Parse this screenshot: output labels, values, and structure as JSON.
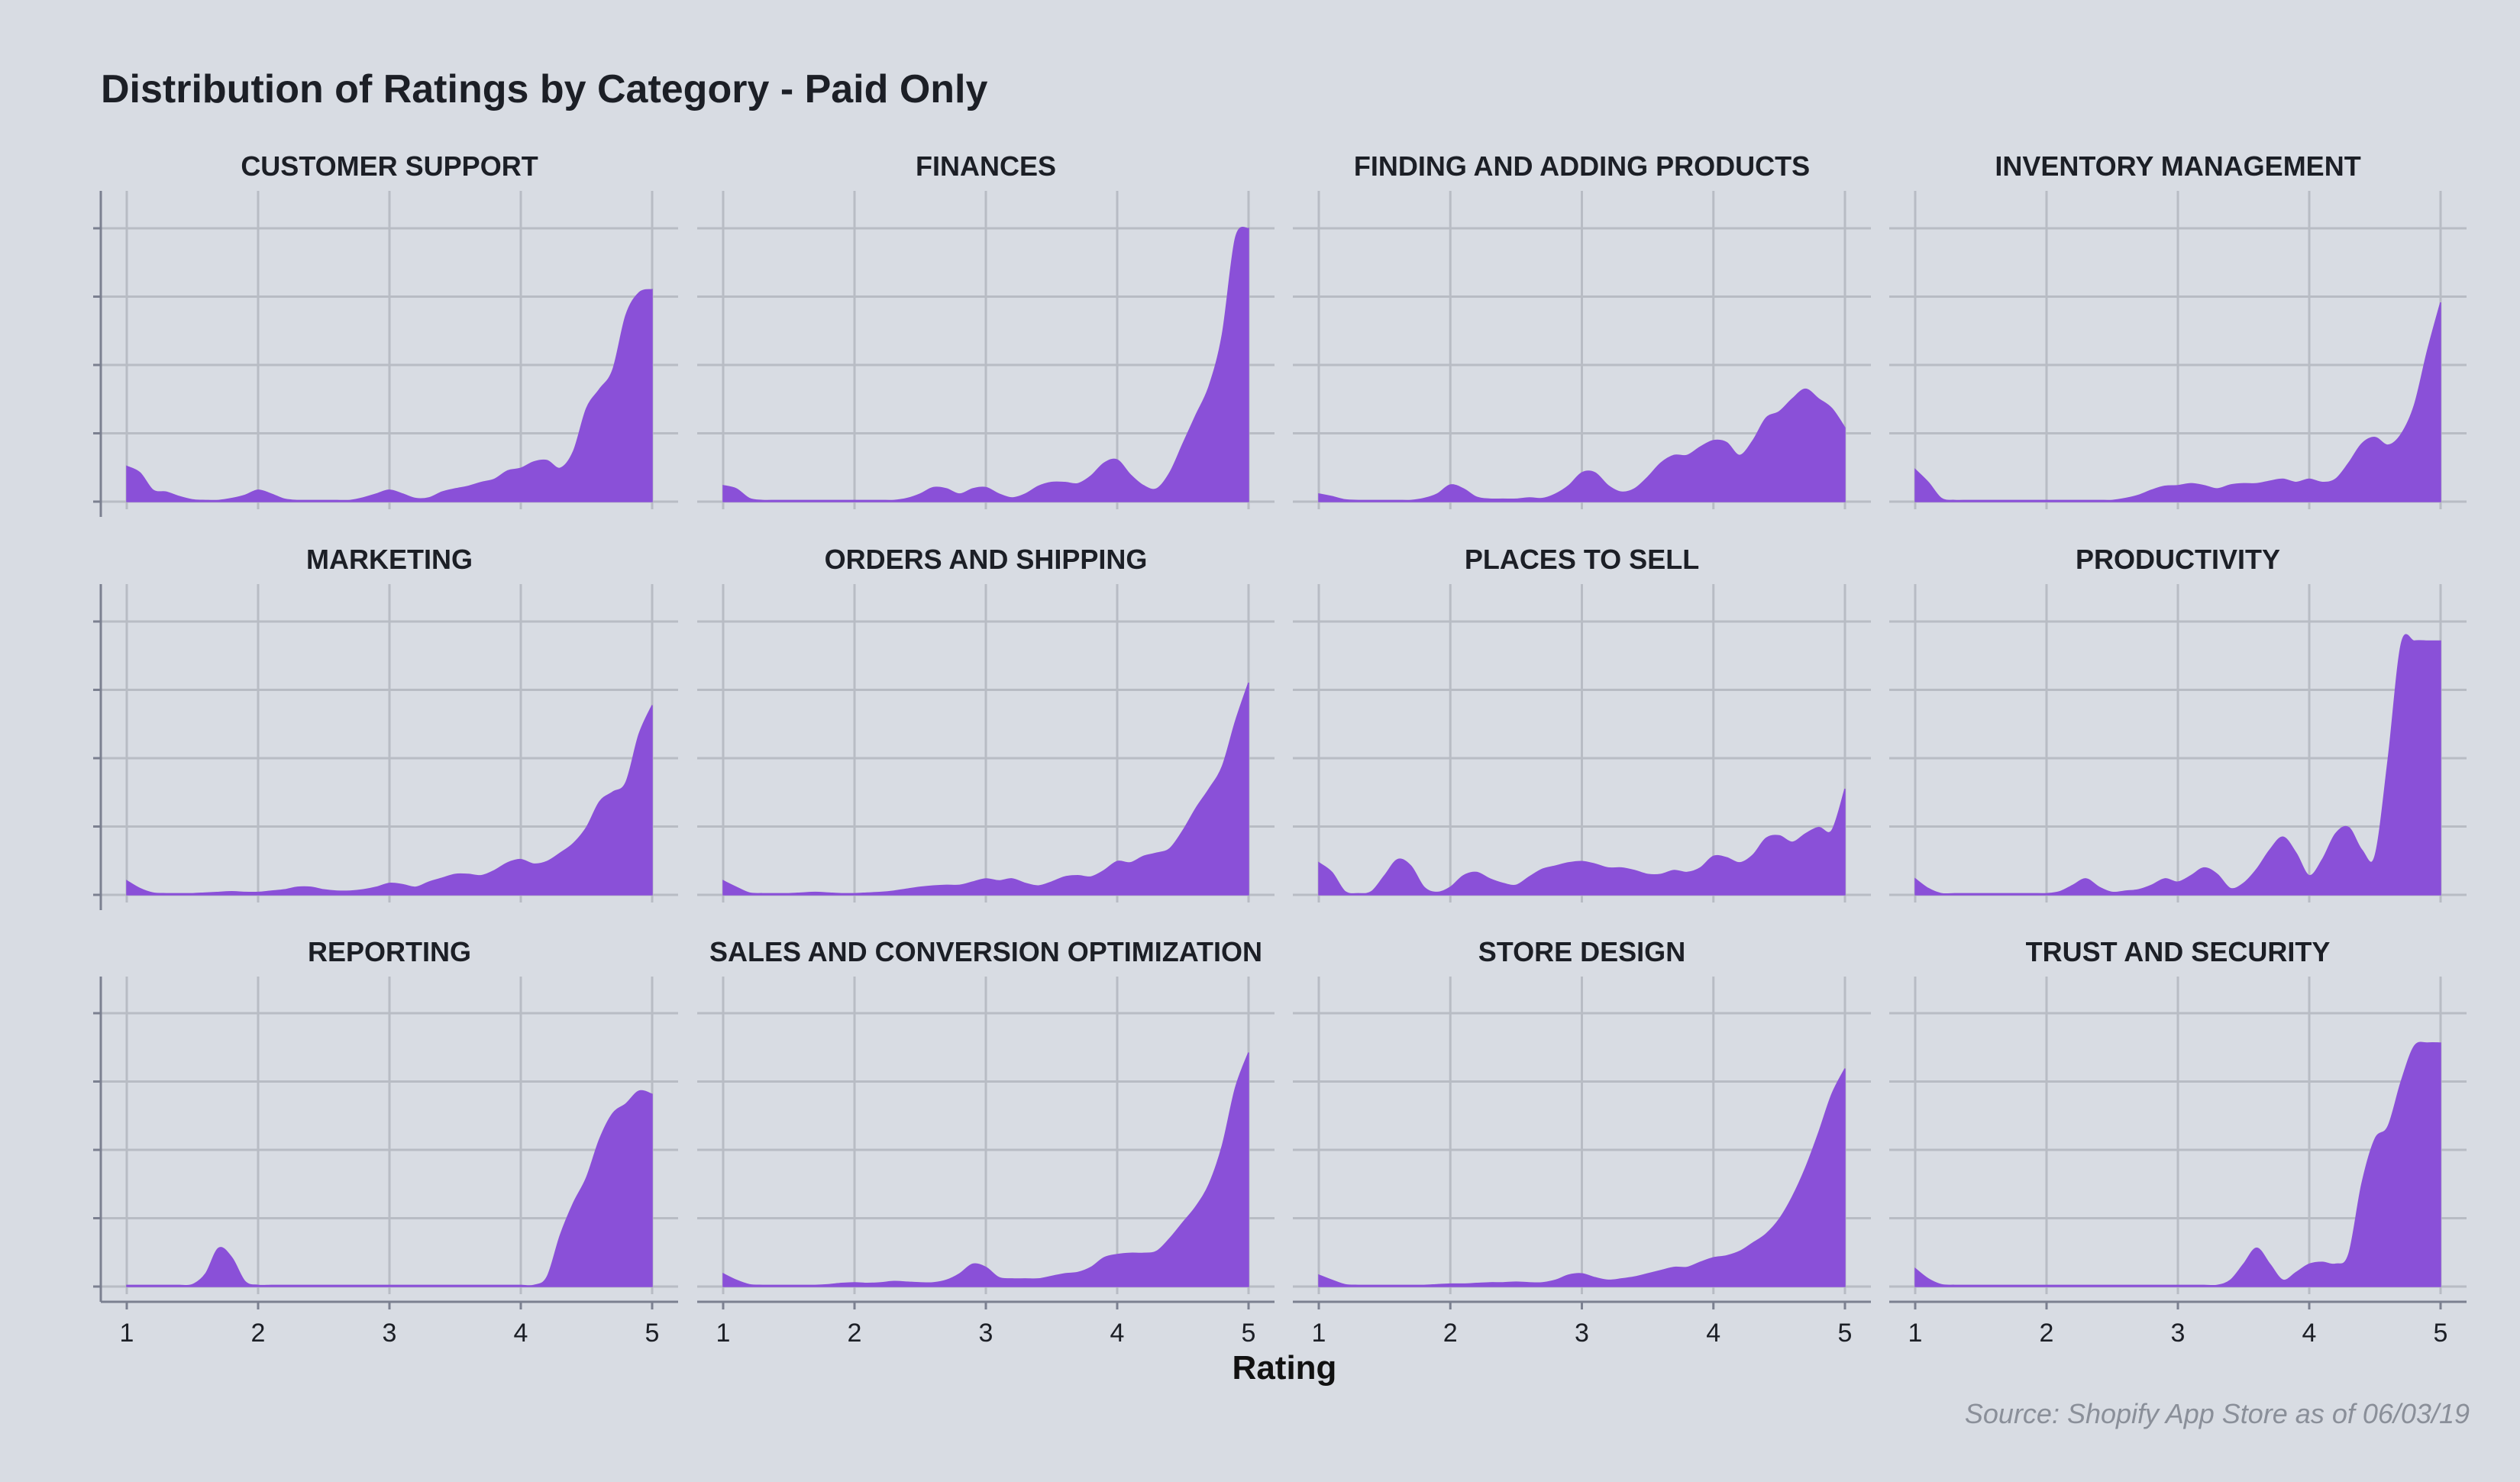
{
  "chart": {
    "title": "Distribution of Ratings by Category - Paid Only",
    "caption": "Source: Shopify App Store as of 06/03/19",
    "xlabel": "Rating"
  },
  "colors": {
    "background": "#d8dce3",
    "fill": "#8a50d8",
    "grid": "#b8bcc4",
    "axis": "#7b8090"
  },
  "chart_data": {
    "type": "area",
    "title": "Distribution of Ratings by Category - Paid Only",
    "xlabel": "Rating",
    "ylabel": "",
    "xlim": [
      1,
      5
    ],
    "xticks": [
      1,
      2,
      3,
      4,
      5
    ],
    "ylim": [
      0,
      4.3
    ],
    "grid": true,
    "legend": "none",
    "panels": [
      {
        "name": "CUSTOMER SUPPORT",
        "x": [
          1,
          1.1,
          1.2,
          1.3,
          1.4,
          1.5,
          1.6,
          1.7,
          1.8,
          1.9,
          2,
          2.1,
          2.2,
          2.3,
          2.4,
          2.5,
          2.6,
          2.7,
          2.8,
          2.9,
          3,
          3.1,
          3.2,
          3.3,
          3.4,
          3.5,
          3.6,
          3.7,
          3.8,
          3.9,
          4,
          4.1,
          4.2,
          4.3,
          4.4,
          4.5,
          4.6,
          4.7,
          4.8,
          4.9,
          5
        ],
        "y": [
          0.55,
          0.45,
          0.18,
          0.15,
          0.08,
          0.03,
          0.02,
          0.02,
          0.05,
          0.1,
          0.18,
          0.12,
          0.04,
          0.02,
          0.02,
          0.02,
          0.02,
          0.02,
          0.06,
          0.12,
          0.18,
          0.12,
          0.05,
          0.06,
          0.15,
          0.2,
          0.24,
          0.3,
          0.35,
          0.48,
          0.52,
          0.62,
          0.64,
          0.52,
          0.78,
          1.45,
          1.75,
          2.05,
          2.9,
          3.25,
          3.3
        ]
      },
      {
        "name": "FINANCES",
        "x": [
          1,
          1.1,
          1.2,
          1.3,
          1.4,
          1.5,
          1.6,
          1.7,
          1.8,
          1.9,
          2,
          2.1,
          2.2,
          2.3,
          2.4,
          2.5,
          2.6,
          2.7,
          2.8,
          2.9,
          3,
          3.1,
          3.2,
          3.3,
          3.4,
          3.5,
          3.6,
          3.7,
          3.8,
          3.9,
          4,
          4.1,
          4.2,
          4.3,
          4.4,
          4.5,
          4.6,
          4.7,
          4.8,
          4.9,
          5
        ],
        "y": [
          0.25,
          0.2,
          0.05,
          0.02,
          0.02,
          0.02,
          0.02,
          0.02,
          0.02,
          0.02,
          0.02,
          0.02,
          0.02,
          0.02,
          0.05,
          0.12,
          0.22,
          0.2,
          0.12,
          0.2,
          0.22,
          0.12,
          0.06,
          0.12,
          0.24,
          0.3,
          0.3,
          0.28,
          0.4,
          0.6,
          0.65,
          0.42,
          0.25,
          0.2,
          0.45,
          0.9,
          1.35,
          1.8,
          2.6,
          4.1,
          4.25
        ]
      },
      {
        "name": "FINDING AND ADDING PRODUCTS",
        "x": [
          1,
          1.1,
          1.2,
          1.3,
          1.4,
          1.5,
          1.6,
          1.7,
          1.8,
          1.9,
          2,
          2.1,
          2.2,
          2.3,
          2.4,
          2.5,
          2.6,
          2.7,
          2.8,
          2.9,
          3,
          3.1,
          3.2,
          3.3,
          3.4,
          3.5,
          3.6,
          3.7,
          3.8,
          3.9,
          4,
          4.1,
          4.2,
          4.3,
          4.4,
          4.5,
          4.6,
          4.7,
          4.8,
          4.9,
          5
        ],
        "y": [
          0.12,
          0.08,
          0.03,
          0.02,
          0.02,
          0.02,
          0.02,
          0.02,
          0.05,
          0.12,
          0.26,
          0.2,
          0.07,
          0.04,
          0.04,
          0.04,
          0.06,
          0.05,
          0.12,
          0.25,
          0.45,
          0.45,
          0.25,
          0.15,
          0.2,
          0.38,
          0.6,
          0.72,
          0.72,
          0.85,
          0.95,
          0.92,
          0.72,
          0.95,
          1.3,
          1.4,
          1.6,
          1.75,
          1.6,
          1.45,
          1.15
        ]
      },
      {
        "name": "INVENTORY MANAGEMENT",
        "x": [
          1,
          1.1,
          1.2,
          1.3,
          1.4,
          1.5,
          1.6,
          1.7,
          1.8,
          1.9,
          2,
          2.1,
          2.2,
          2.3,
          2.4,
          2.5,
          2.6,
          2.7,
          2.8,
          2.9,
          3,
          3.1,
          3.2,
          3.3,
          3.4,
          3.5,
          3.6,
          3.7,
          3.8,
          3.9,
          4,
          4.1,
          4.2,
          4.3,
          4.4,
          4.5,
          4.6,
          4.7,
          4.8,
          4.9,
          5
        ],
        "y": [
          0.5,
          0.3,
          0.05,
          0.02,
          0.02,
          0.02,
          0.02,
          0.02,
          0.02,
          0.02,
          0.02,
          0.02,
          0.02,
          0.02,
          0.02,
          0.02,
          0.05,
          0.1,
          0.18,
          0.24,
          0.25,
          0.28,
          0.25,
          0.2,
          0.26,
          0.28,
          0.28,
          0.32,
          0.35,
          0.3,
          0.35,
          0.3,
          0.35,
          0.6,
          0.9,
          1.0,
          0.88,
          1.05,
          1.5,
          2.35,
          3.1
        ]
      },
      {
        "name": "MARKETING",
        "x": [
          1,
          1.1,
          1.2,
          1.3,
          1.4,
          1.5,
          1.6,
          1.7,
          1.8,
          1.9,
          2,
          2.1,
          2.2,
          2.3,
          2.4,
          2.5,
          2.6,
          2.7,
          2.8,
          2.9,
          3,
          3.1,
          3.2,
          3.3,
          3.4,
          3.5,
          3.6,
          3.7,
          3.8,
          3.9,
          4,
          4.1,
          4.2,
          4.3,
          4.4,
          4.5,
          4.6,
          4.7,
          4.8,
          4.9,
          5
        ],
        "y": [
          0.22,
          0.1,
          0.03,
          0.02,
          0.02,
          0.02,
          0.03,
          0.04,
          0.05,
          0.04,
          0.04,
          0.06,
          0.08,
          0.12,
          0.12,
          0.08,
          0.06,
          0.06,
          0.08,
          0.12,
          0.18,
          0.16,
          0.12,
          0.2,
          0.26,
          0.32,
          0.32,
          0.3,
          0.38,
          0.5,
          0.55,
          0.48,
          0.52,
          0.65,
          0.8,
          1.05,
          1.45,
          1.6,
          1.75,
          2.5,
          2.95
        ]
      },
      {
        "name": "ORDERS AND SHIPPING",
        "x": [
          1,
          1.1,
          1.2,
          1.3,
          1.4,
          1.5,
          1.6,
          1.7,
          1.8,
          1.9,
          2,
          2.1,
          2.2,
          2.3,
          2.4,
          2.5,
          2.6,
          2.7,
          2.8,
          2.9,
          3,
          3.1,
          3.2,
          3.3,
          3.4,
          3.5,
          3.6,
          3.7,
          3.8,
          3.9,
          4,
          4.1,
          4.2,
          4.3,
          4.4,
          4.5,
          4.6,
          4.7,
          4.8,
          4.9,
          5
        ],
        "y": [
          0.22,
          0.12,
          0.03,
          0.02,
          0.02,
          0.02,
          0.03,
          0.04,
          0.03,
          0.02,
          0.02,
          0.03,
          0.04,
          0.06,
          0.09,
          0.12,
          0.14,
          0.15,
          0.15,
          0.2,
          0.25,
          0.22,
          0.25,
          0.18,
          0.14,
          0.2,
          0.28,
          0.3,
          0.28,
          0.38,
          0.52,
          0.5,
          0.6,
          0.65,
          0.72,
          1.0,
          1.35,
          1.65,
          2.0,
          2.7,
          3.3
        ]
      },
      {
        "name": "PLACES TO SELL",
        "x": [
          1,
          1.1,
          1.2,
          1.3,
          1.4,
          1.5,
          1.6,
          1.7,
          1.8,
          1.9,
          2,
          2.1,
          2.2,
          2.3,
          2.4,
          2.5,
          2.6,
          2.7,
          2.8,
          2.9,
          3,
          3.1,
          3.2,
          3.3,
          3.4,
          3.5,
          3.6,
          3.7,
          3.8,
          3.9,
          4,
          4.1,
          4.2,
          4.3,
          4.4,
          4.5,
          4.6,
          4.7,
          4.8,
          4.9,
          5
        ],
        "y": [
          0.5,
          0.35,
          0.05,
          0.02,
          0.05,
          0.3,
          0.55,
          0.45,
          0.12,
          0.04,
          0.12,
          0.3,
          0.35,
          0.25,
          0.18,
          0.15,
          0.28,
          0.4,
          0.45,
          0.5,
          0.52,
          0.48,
          0.42,
          0.42,
          0.38,
          0.32,
          0.32,
          0.38,
          0.35,
          0.42,
          0.6,
          0.58,
          0.5,
          0.62,
          0.88,
          0.92,
          0.82,
          0.95,
          1.05,
          1.0,
          1.65
        ]
      },
      {
        "name": "PRODUCTIVITY",
        "x": [
          1,
          1.1,
          1.2,
          1.3,
          1.4,
          1.5,
          1.6,
          1.7,
          1.8,
          1.9,
          2,
          2.1,
          2.2,
          2.3,
          2.4,
          2.5,
          2.6,
          2.7,
          2.8,
          2.9,
          3,
          3.1,
          3.2,
          3.3,
          3.4,
          3.5,
          3.6,
          3.7,
          3.8,
          3.9,
          4,
          4.1,
          4.2,
          4.3,
          4.4,
          4.5,
          4.6,
          4.7,
          4.8,
          4.9,
          5
        ],
        "y": [
          0.25,
          0.1,
          0.02,
          0.02,
          0.02,
          0.02,
          0.02,
          0.02,
          0.02,
          0.02,
          0.02,
          0.05,
          0.15,
          0.25,
          0.12,
          0.04,
          0.06,
          0.08,
          0.15,
          0.25,
          0.2,
          0.3,
          0.42,
          0.32,
          0.1,
          0.18,
          0.4,
          0.7,
          0.9,
          0.65,
          0.3,
          0.55,
          0.95,
          1.05,
          0.7,
          0.6,
          2.1,
          3.9,
          3.95,
          3.95,
          3.95
        ]
      },
      {
        "name": "REPORTING",
        "x": [
          1,
          1.1,
          1.2,
          1.3,
          1.4,
          1.5,
          1.6,
          1.7,
          1.8,
          1.9,
          2,
          2.1,
          2.2,
          2.3,
          2.4,
          2.5,
          2.6,
          2.7,
          2.8,
          2.9,
          3,
          3.1,
          3.2,
          3.3,
          3.4,
          3.5,
          3.6,
          3.7,
          3.8,
          3.9,
          4,
          4.1,
          4.2,
          4.3,
          4.4,
          4.5,
          4.6,
          4.7,
          4.8,
          4.9,
          5
        ],
        "y": [
          0.02,
          0.02,
          0.02,
          0.02,
          0.02,
          0.03,
          0.2,
          0.6,
          0.45,
          0.08,
          0.02,
          0.02,
          0.02,
          0.02,
          0.02,
          0.02,
          0.02,
          0.02,
          0.02,
          0.02,
          0.02,
          0.02,
          0.02,
          0.02,
          0.02,
          0.02,
          0.02,
          0.02,
          0.02,
          0.02,
          0.02,
          0.02,
          0.15,
          0.8,
          1.3,
          1.7,
          2.3,
          2.7,
          2.85,
          3.05,
          3.0
        ]
      },
      {
        "name": "SALES AND CONVERSION OPTIMIZATION",
        "x": [
          1,
          1.1,
          1.2,
          1.3,
          1.4,
          1.5,
          1.6,
          1.7,
          1.8,
          1.9,
          2,
          2.1,
          2.2,
          2.3,
          2.4,
          2.5,
          2.6,
          2.7,
          2.8,
          2.9,
          3,
          3.1,
          3.2,
          3.3,
          3.4,
          3.5,
          3.6,
          3.7,
          3.8,
          3.9,
          4,
          4.1,
          4.2,
          4.3,
          4.4,
          4.5,
          4.6,
          4.7,
          4.8,
          4.9,
          5
        ],
        "y": [
          0.2,
          0.1,
          0.03,
          0.02,
          0.02,
          0.02,
          0.02,
          0.02,
          0.03,
          0.05,
          0.06,
          0.05,
          0.06,
          0.08,
          0.07,
          0.06,
          0.06,
          0.1,
          0.2,
          0.35,
          0.3,
          0.14,
          0.12,
          0.12,
          0.12,
          0.16,
          0.2,
          0.22,
          0.3,
          0.45,
          0.5,
          0.52,
          0.52,
          0.55,
          0.75,
          1.0,
          1.25,
          1.6,
          2.2,
          3.1,
          3.65
        ]
      },
      {
        "name": "STORE DESIGN",
        "x": [
          1,
          1.1,
          1.2,
          1.3,
          1.4,
          1.5,
          1.6,
          1.7,
          1.8,
          1.9,
          2,
          2.1,
          2.2,
          2.3,
          2.4,
          2.5,
          2.6,
          2.7,
          2.8,
          2.9,
          3,
          3.1,
          3.2,
          3.3,
          3.4,
          3.5,
          3.6,
          3.7,
          3.8,
          3.9,
          4,
          4.1,
          4.2,
          4.3,
          4.4,
          4.5,
          4.6,
          4.7,
          4.8,
          4.9,
          5
        ],
        "y": [
          0.18,
          0.1,
          0.03,
          0.02,
          0.02,
          0.02,
          0.02,
          0.02,
          0.02,
          0.03,
          0.04,
          0.04,
          0.05,
          0.06,
          0.06,
          0.07,
          0.06,
          0.06,
          0.1,
          0.18,
          0.2,
          0.14,
          0.1,
          0.12,
          0.15,
          0.2,
          0.25,
          0.3,
          0.3,
          0.38,
          0.45,
          0.48,
          0.55,
          0.68,
          0.82,
          1.05,
          1.4,
          1.85,
          2.4,
          3.0,
          3.4
        ]
      },
      {
        "name": "TRUST AND SECURITY",
        "x": [
          1,
          1.1,
          1.2,
          1.3,
          1.4,
          1.5,
          1.6,
          1.7,
          1.8,
          1.9,
          2,
          2.1,
          2.2,
          2.3,
          2.4,
          2.5,
          2.6,
          2.7,
          2.8,
          2.9,
          3,
          3.1,
          3.2,
          3.3,
          3.4,
          3.5,
          3.6,
          3.7,
          3.8,
          3.9,
          4,
          4.1,
          4.2,
          4.3,
          4.4,
          4.5,
          4.6,
          4.7,
          4.8,
          4.9,
          5
        ],
        "y": [
          0.28,
          0.12,
          0.03,
          0.02,
          0.02,
          0.02,
          0.02,
          0.02,
          0.02,
          0.02,
          0.02,
          0.02,
          0.02,
          0.02,
          0.02,
          0.02,
          0.02,
          0.02,
          0.02,
          0.02,
          0.02,
          0.02,
          0.02,
          0.02,
          0.1,
          0.35,
          0.6,
          0.35,
          0.1,
          0.22,
          0.35,
          0.38,
          0.35,
          0.5,
          1.6,
          2.3,
          2.5,
          3.2,
          3.75,
          3.8,
          3.8
        ]
      }
    ]
  }
}
